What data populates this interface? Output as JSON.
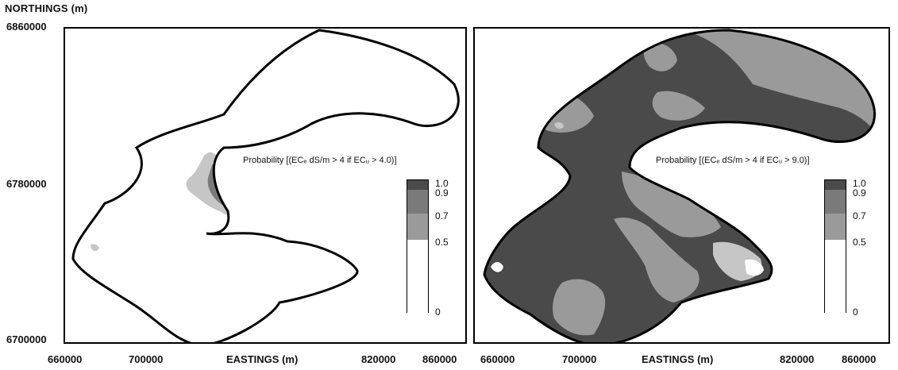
{
  "axes": {
    "y_title": "NORTHINGS (m)",
    "x_title": "EASTINGS (m)",
    "y_ticks": [
      "6860000",
      "6780000",
      "6700000"
    ],
    "x_ticks": [
      "660000",
      "700000",
      "820000",
      "860000"
    ]
  },
  "legend": {
    "labels": [
      "1.0",
      "0.9",
      "0.7",
      "0.5",
      "0"
    ],
    "colors": [
      "#4a4a4a",
      "#7a7a7a",
      "#9a9a9a",
      "#c6c6c6",
      "#ffffff"
    ]
  },
  "panels": [
    {
      "legend_title": "Probability [(ECₑ dS/m > 4 if ECᵤ > 4.0)]"
    },
    {
      "legend_title": "Probability [(ECₑ dS/m > 4 if ECᵤ > 9.0)]"
    }
  ]
}
